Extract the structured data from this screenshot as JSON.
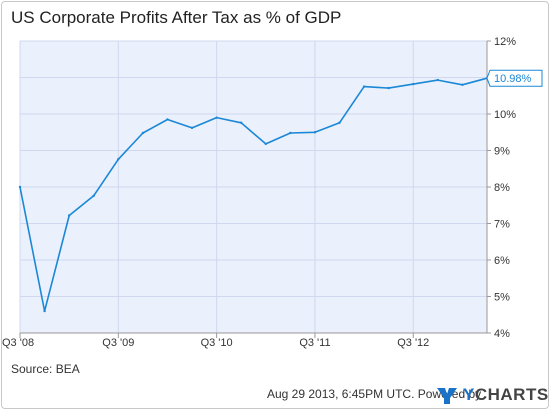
{
  "title": "US Corporate Profits After Tax as % of GDP",
  "source": "Source: BEA",
  "footer": {
    "timestamp": "Aug 29 2013, 6:45PM UTC.",
    "powered_by": "Powered by",
    "brand_y": "Y",
    "brand_rest": "CHARTS"
  },
  "colors": {
    "line": "#1b88d6",
    "plot_bg": "#eaf0fc",
    "grid": "#cfd8ee"
  },
  "chart_data": {
    "type": "line",
    "title": "US Corporate Profits After Tax as % of GDP",
    "xlabel": "",
    "ylabel": "",
    "ylim": [
      4,
      12
    ],
    "y_ticks": [
      "4%",
      "5%",
      "6%",
      "7%",
      "8%",
      "9%",
      "10%",
      "11%",
      "12%"
    ],
    "x_ticks": [
      "Q3 '08",
      "Q3 '09",
      "Q3 '10",
      "Q3 '11",
      "Q3 '12"
    ],
    "x": [
      "Q3 '08",
      "Q4 '08",
      "Q1 '09",
      "Q2 '09",
      "Q3 '09",
      "Q4 '09",
      "Q1 '10",
      "Q2 '10",
      "Q3 '10",
      "Q4 '10",
      "Q1 '11",
      "Q2 '11",
      "Q3 '11",
      "Q4 '11",
      "Q1 '12",
      "Q2 '12",
      "Q3 '12",
      "Q4 '12",
      "Q1 '13",
      "Q2 '13"
    ],
    "values": [
      8.0,
      4.6,
      7.22,
      7.76,
      8.76,
      9.48,
      9.85,
      9.62,
      9.9,
      9.76,
      9.18,
      9.48,
      9.5,
      9.76,
      10.75,
      10.71,
      10.82,
      10.93,
      10.8,
      10.98
    ],
    "last_value_label": "10.98%",
    "grid": true,
    "y_axis_side": "right"
  }
}
